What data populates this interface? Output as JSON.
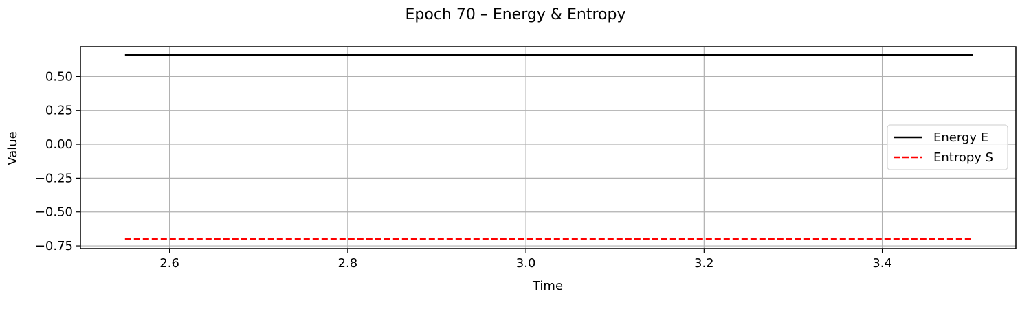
{
  "chart_data": {
    "type": "line",
    "title": "Epoch 70 – Energy & Entropy",
    "xlabel": "Time",
    "ylabel": "Value",
    "xlim": [
      2.5,
      3.55
    ],
    "ylim": [
      -0.77,
      0.72
    ],
    "xticks": [
      2.6,
      2.8,
      3.0,
      3.2,
      3.4
    ],
    "xtick_labels": [
      "2.6",
      "2.8",
      "3.0",
      "3.2",
      "3.4"
    ],
    "yticks": [
      0.5,
      0.25,
      0.0,
      -0.25,
      -0.5,
      -0.75
    ],
    "ytick_labels": [
      "0.50",
      "0.25",
      "0.00",
      "−0.25",
      "−0.50",
      "−0.75"
    ],
    "grid": true,
    "legend_position": "center-right",
    "series": [
      {
        "name": "Energy E",
        "color": "#000000",
        "style": "solid",
        "x": [
          2.55,
          3.55
        ],
        "y": [
          0.66,
          0.66
        ]
      },
      {
        "name": "Entropy S",
        "color": "#ff0000",
        "style": "dashed",
        "x": [
          2.55,
          3.55
        ],
        "y": [
          -0.7,
          -0.7
        ]
      }
    ]
  }
}
